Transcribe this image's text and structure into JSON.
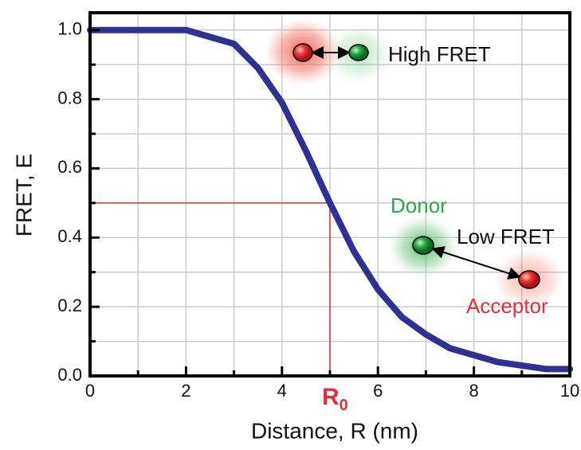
{
  "chart_data": {
    "type": "line",
    "x_label": "Distance, R (nm)",
    "y_label": "FRET, E",
    "x": [
      0,
      0.5,
      1,
      1.5,
      2,
      2.5,
      3,
      3.5,
      4,
      4.5,
      5,
      5.5,
      6,
      6.5,
      7,
      7.5,
      8,
      8.5,
      9,
      9.5,
      10
    ],
    "values": [
      1.0,
      1.0,
      1.0,
      1.0,
      1.0,
      0.98,
      0.96,
      0.89,
      0.79,
      0.65,
      0.5,
      0.36,
      0.25,
      0.17,
      0.12,
      0.08,
      0.06,
      0.04,
      0.03,
      0.02,
      0.02
    ],
    "color": "#2e3192",
    "xlim": [
      0,
      10
    ],
    "ylim": [
      0,
      1.05
    ],
    "xticks": [
      0,
      2,
      4,
      6,
      8,
      10
    ],
    "yticks": [
      {
        "value": 0,
        "label": "0.0"
      },
      0.2,
      0.4,
      0.6,
      0.8,
      {
        "value": 1,
        "label": "1.0"
      }
    ],
    "minor_xticks": [
      1,
      3,
      5,
      7,
      9
    ],
    "minor_yticks": [
      0.1,
      0.3,
      0.5,
      0.7,
      0.9
    ],
    "grid": true,
    "reference": {
      "x": 5,
      "y": 0.5,
      "color": "#e0303a",
      "label": "R",
      "label_sub": "0"
    },
    "annotations": {
      "high": "High FRET",
      "donor": "Donor",
      "low": "Low FRET",
      "acceptor": "Acceptor"
    }
  }
}
